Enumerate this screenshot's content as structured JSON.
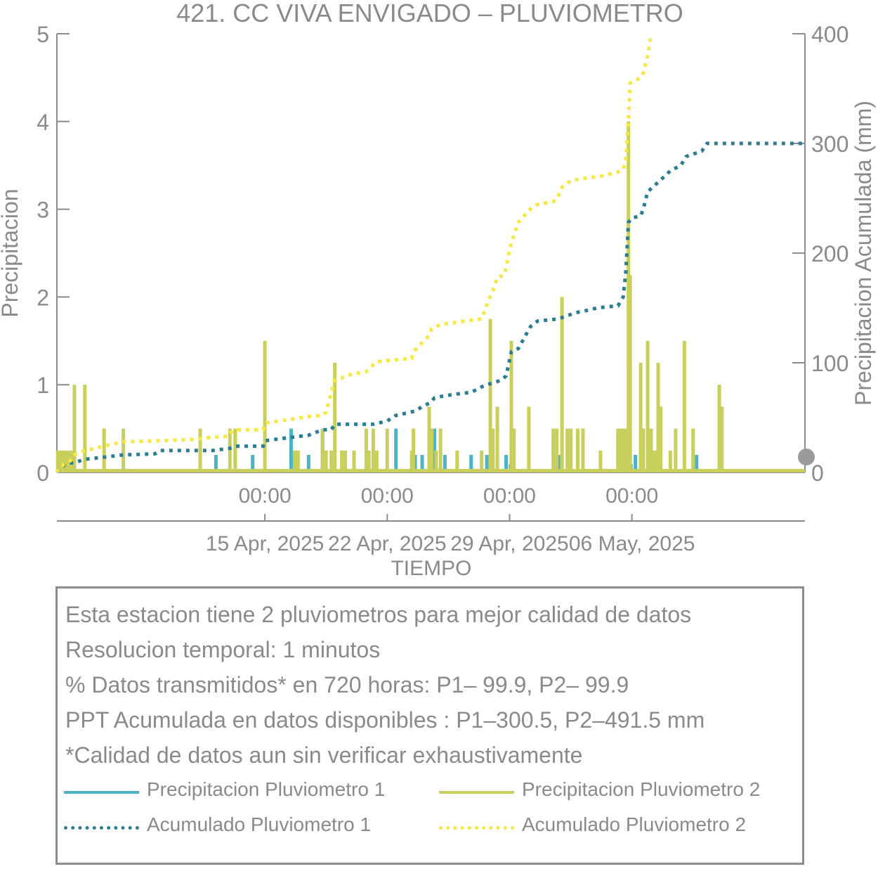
{
  "chart_data": {
    "type": "bar+line",
    "title": "421. CC VIVA ENVIGADO – PLUVIOMETRO",
    "xlabel": "TIEMPO",
    "ylabel_left": "Precipitacion",
    "ylabel_right": "Precipitacion Acumulada (mm)",
    "ylim_left": [
      0,
      5
    ],
    "ylim_right": [
      0,
      400
    ],
    "x_range_days": [
      -5.9,
      36.9
    ],
    "x_origin_date": "09 Apr, 2025",
    "yticks_left": [
      0,
      1,
      2,
      3,
      4,
      5
    ],
    "yticks_right": [
      0,
      100,
      200,
      300,
      400
    ],
    "xticks": [
      {
        "day": 6,
        "time": "00:00",
        "date": "15 Apr, 2025"
      },
      {
        "day": 13,
        "time": "00:00",
        "date": "22 Apr, 2025"
      },
      {
        "day": 20,
        "time": "00:00",
        "date": "29 Apr, 2025"
      },
      {
        "day": 27,
        "time": "00:00",
        "date": "06 May, 2025"
      }
    ],
    "colors": {
      "p1": "#4bb3c8",
      "p2": "#c8cf5a",
      "acc1": "#2d7d92",
      "acc2": "#f5e842",
      "axis": "#8c8c8c",
      "marker": "#9a9a9a"
    },
    "series": [
      {
        "name": "Precipitacion Pluviometro 1",
        "kind": "bar",
        "points": [
          [
            -5.8,
            0.2
          ],
          [
            -5.6,
            0.2
          ],
          [
            -5.4,
            0.2
          ],
          [
            5.3,
            0.2
          ],
          [
            -5.0,
            0.2
          ],
          [
            3.2,
            0.2
          ],
          [
            7.5,
            0.5
          ],
          [
            8.5,
            0.2
          ],
          [
            9.3,
            0.5
          ],
          [
            13.5,
            0.5
          ],
          [
            14.6,
            0.2
          ],
          [
            15.0,
            0.2
          ],
          [
            15.5,
            0.2
          ],
          [
            15.7,
            0.5
          ],
          [
            16.3,
            0.2
          ],
          [
            17.8,
            0.2
          ],
          [
            18.7,
            0.2
          ],
          [
            19.8,
            0.2
          ],
          [
            20.1,
            0.5
          ],
          [
            22.8,
            0.2
          ],
          [
            26.5,
            0.5
          ],
          [
            27.2,
            0.2
          ],
          [
            28.6,
            0.2
          ],
          [
            30.7,
            0.2
          ]
        ]
      },
      {
        "name": "Precipitacion Pluviometro 2",
        "kind": "bar",
        "points": [
          [
            -5.85,
            0.25
          ],
          [
            -5.7,
            0.25
          ],
          [
            -5.55,
            0.25
          ],
          [
            -5.4,
            0.25
          ],
          [
            -5.25,
            0.25
          ],
          [
            -5.1,
            0.25
          ],
          [
            -4.9,
            1.0
          ],
          [
            -4.3,
            1.0
          ],
          [
            -3.2,
            0.5
          ],
          [
            -2.1,
            0.5
          ],
          [
            2.3,
            0.5
          ],
          [
            4.0,
            0.5
          ],
          [
            4.3,
            0.5
          ],
          [
            6.0,
            1.5
          ],
          [
            7.7,
            0.25
          ],
          [
            7.9,
            0.25
          ],
          [
            9.3,
            0.5
          ],
          [
            9.5,
            0.25
          ],
          [
            9.8,
            0.25
          ],
          [
            10.0,
            1.25
          ],
          [
            10.4,
            0.25
          ],
          [
            10.6,
            0.25
          ],
          [
            11.1,
            0.25
          ],
          [
            11.8,
            0.5
          ],
          [
            11.95,
            0.25
          ],
          [
            12.2,
            0.5
          ],
          [
            12.4,
            0.25
          ],
          [
            13.0,
            0.5
          ],
          [
            14.4,
            0.25
          ],
          [
            14.5,
            0.5
          ],
          [
            15.4,
            0.75
          ],
          [
            15.55,
            0.5
          ],
          [
            15.8,
            0.25
          ],
          [
            16.05,
            0.5
          ],
          [
            17.0,
            0.25
          ],
          [
            18.4,
            0.25
          ],
          [
            18.9,
            1.75
          ],
          [
            19.05,
            0.5
          ],
          [
            19.3,
            0.75
          ],
          [
            20.1,
            1.5
          ],
          [
            20.25,
            0.5
          ],
          [
            21.1,
            0.75
          ],
          [
            22.5,
            0.5
          ],
          [
            22.7,
            0.5
          ],
          [
            23.0,
            2.0
          ],
          [
            23.3,
            0.5
          ],
          [
            23.5,
            0.5
          ],
          [
            23.9,
            0.5
          ],
          [
            24.2,
            0.5
          ],
          [
            25.2,
            0.25
          ],
          [
            26.2,
            0.5
          ],
          [
            26.35,
            0.5
          ],
          [
            26.5,
            0.5
          ],
          [
            26.65,
            0.5
          ],
          [
            26.8,
            4.0
          ],
          [
            26.9,
            2.25
          ],
          [
            27.5,
            1.25
          ],
          [
            27.65,
            0.5
          ],
          [
            27.9,
            1.5
          ],
          [
            28.1,
            0.5
          ],
          [
            28.3,
            0.25
          ],
          [
            28.5,
            1.25
          ],
          [
            28.65,
            0.75
          ],
          [
            29.2,
            0.25
          ],
          [
            29.5,
            0.5
          ],
          [
            30.0,
            1.5
          ],
          [
            30.5,
            0.5
          ],
          [
            32.0,
            1.0
          ],
          [
            32.15,
            0.75
          ]
        ]
      },
      {
        "name": "Acumulado Pluviometro 1",
        "kind": "line",
        "points": [
          [
            -5.9,
            0
          ],
          [
            -5.8,
            3
          ],
          [
            -5.6,
            5
          ],
          [
            -5.4,
            8
          ],
          [
            -4.9,
            9
          ],
          [
            -4.3,
            12
          ],
          [
            -3.2,
            14
          ],
          [
            -2.1,
            16
          ],
          [
            -0.3,
            17
          ],
          [
            0.0,
            20
          ],
          [
            3.0,
            20
          ],
          [
            4.0,
            22
          ],
          [
            4.3,
            24
          ],
          [
            5.9,
            24
          ],
          [
            6.0,
            29
          ],
          [
            7.5,
            32
          ],
          [
            8.5,
            34
          ],
          [
            9.3,
            39
          ],
          [
            9.8,
            39
          ],
          [
            10.0,
            44
          ],
          [
            12.2,
            44
          ],
          [
            13.0,
            47
          ],
          [
            13.5,
            52
          ],
          [
            14.6,
            56
          ],
          [
            15.0,
            60
          ],
          [
            15.5,
            64
          ],
          [
            15.7,
            68
          ],
          [
            16.3,
            70
          ],
          [
            17.2,
            72
          ],
          [
            17.8,
            73
          ],
          [
            18.4,
            78
          ],
          [
            18.7,
            80
          ],
          [
            19.5,
            84
          ],
          [
            19.8,
            88
          ],
          [
            20.1,
            110
          ],
          [
            20.5,
            113
          ],
          [
            21.2,
            133
          ],
          [
            21.6,
            138
          ],
          [
            22.8,
            140
          ],
          [
            23.3,
            143
          ],
          [
            23.9,
            146
          ],
          [
            24.5,
            148
          ],
          [
            25.0,
            150
          ],
          [
            26.2,
            152
          ],
          [
            26.5,
            160
          ],
          [
            26.65,
            182
          ],
          [
            26.8,
            228
          ],
          [
            27.0,
            232
          ],
          [
            27.5,
            234
          ],
          [
            27.65,
            240
          ],
          [
            27.9,
            256
          ],
          [
            28.6,
            266
          ],
          [
            29.2,
            275
          ],
          [
            29.8,
            280
          ],
          [
            30.1,
            288
          ],
          [
            31.0,
            293
          ],
          [
            31.3,
            300
          ],
          [
            36.9,
            300
          ]
        ]
      },
      {
        "name": "Acumulado Pluviometro 2",
        "kind": "line",
        "points": [
          [
            -5.9,
            0
          ],
          [
            -5.8,
            4
          ],
          [
            -5.6,
            6
          ],
          [
            -5.4,
            9
          ],
          [
            -5.1,
            11
          ],
          [
            -4.9,
            16
          ],
          [
            -4.3,
            20
          ],
          [
            -3.2,
            24
          ],
          [
            -2.1,
            28
          ],
          [
            2.0,
            30
          ],
          [
            2.3,
            31
          ],
          [
            3.9,
            33
          ],
          [
            4.0,
            36
          ],
          [
            4.3,
            39
          ],
          [
            5.9,
            39
          ],
          [
            6.0,
            45
          ],
          [
            7.7,
            49
          ],
          [
            8.5,
            51
          ],
          [
            9.3,
            52
          ],
          [
            9.5,
            55
          ],
          [
            9.8,
            73
          ],
          [
            10.0,
            84
          ],
          [
            10.4,
            86
          ],
          [
            10.6,
            88
          ],
          [
            11.1,
            90
          ],
          [
            11.8,
            92
          ],
          [
            12.2,
            98
          ],
          [
            12.4,
            101
          ],
          [
            13.0,
            102
          ],
          [
            14.4,
            104
          ],
          [
            14.5,
            110
          ],
          [
            15.4,
            125
          ],
          [
            15.55,
            131
          ],
          [
            15.8,
            133
          ],
          [
            16.05,
            135
          ],
          [
            17.0,
            137
          ],
          [
            18.4,
            140
          ],
          [
            18.9,
            161
          ],
          [
            19.05,
            166
          ],
          [
            19.3,
            178
          ],
          [
            19.7,
            180
          ],
          [
            20.1,
            210
          ],
          [
            20.25,
            216
          ],
          [
            20.5,
            228
          ],
          [
            21.1,
            239
          ],
          [
            21.5,
            244
          ],
          [
            22.5,
            247
          ],
          [
            22.7,
            249
          ],
          [
            23.0,
            260
          ],
          [
            23.5,
            266
          ],
          [
            24.2,
            268
          ],
          [
            25.2,
            270
          ],
          [
            26.2,
            274
          ],
          [
            26.5,
            276
          ],
          [
            26.65,
            284
          ],
          [
            26.8,
            321
          ],
          [
            26.9,
            355
          ],
          [
            27.5,
            360
          ],
          [
            27.65,
            364
          ],
          [
            27.9,
            380
          ],
          [
            28.1,
            400
          ]
        ]
      }
    ],
    "end_marker_value": 0
  },
  "info_box": {
    "lines": [
      "Esta estacion tiene 2 pluviometros para mejor calidad de datos",
      "Resolucion temporal: 1 minutos",
      "% Datos transmitidos* en 720 horas: P1– 99.9, P2– 99.9",
      "PPT Acumulada en datos disponibles : P1–300.5, P2–491.5 mm",
      "*Calidad de datos aun sin verificar exhaustivamente"
    ],
    "legend": [
      {
        "label": "Precipitacion Pluviometro 1",
        "style": "solid",
        "color": "#4bb3c8"
      },
      {
        "label": "Precipitacion Pluviometro 2",
        "style": "solid",
        "color": "#c8cf5a"
      },
      {
        "label": "Acumulado Pluviometro 1",
        "style": "dotted",
        "color": "#2d7d92"
      },
      {
        "label": "Acumulado Pluviometro 2",
        "style": "dotted",
        "color": "#f5e842"
      }
    ]
  }
}
